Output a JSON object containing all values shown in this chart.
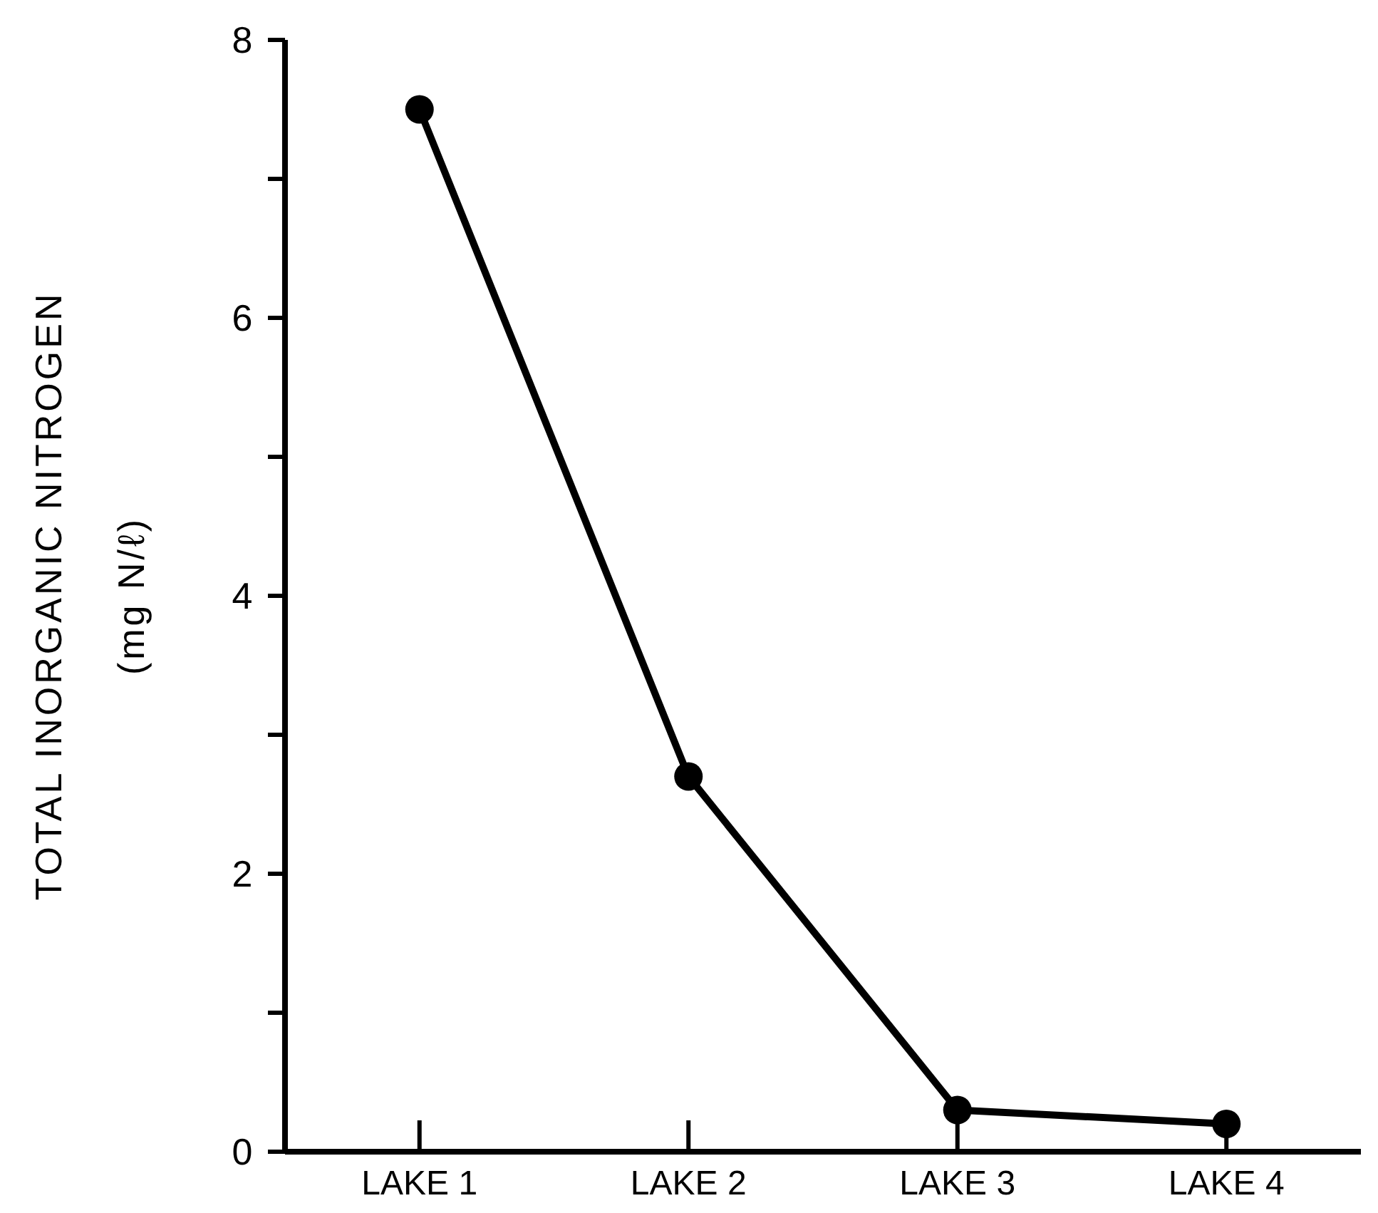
{
  "chart_data": {
    "type": "line",
    "ylabel": "TOTAL INORGANIC NITROGEN\n(mg N/ℓ)",
    "categories": [
      "LAKE 1",
      "LAKE 2",
      "LAKE 3",
      "LAKE 4"
    ],
    "series": [
      {
        "color": "#000000",
        "values": [
          7.5,
          2.7,
          0.3,
          0.2
        ]
      }
    ],
    "ylim": [
      0,
      8
    ],
    "yticks": [
      0,
      {
        "value": 1,
        "label": null
      },
      2,
      {
        "value": 3,
        "label": null
      },
      4,
      {
        "value": 5,
        "label": null
      },
      6,
      {
        "value": 7,
        "label": null
      },
      8
    ],
    "marker": "circle",
    "line_style": "solid",
    "grid": false
  }
}
